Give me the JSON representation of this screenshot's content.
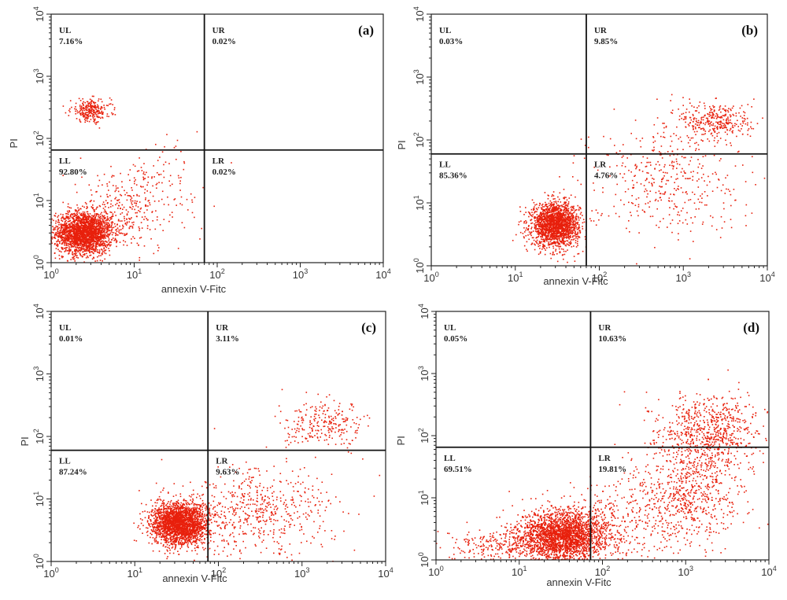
{
  "figure": {
    "point_color": "#e8200c",
    "axis_color": "#222222"
  },
  "chart_data": [
    {
      "type": "scatter",
      "panel": "(a)",
      "xlabel": "annexin V-Fitc",
      "ylabel": "PI",
      "xscale": "log",
      "yscale": "log",
      "xlim": [
        1,
        10000
      ],
      "ylim": [
        1,
        10000
      ],
      "x_ticks": [
        "10^0",
        "10^1",
        "10^2",
        "10^3",
        "10^4"
      ],
      "y_ticks": [
        "10^0",
        "10^1",
        "10^2",
        "10^3",
        "10^4"
      ],
      "gate": {
        "x": 70,
        "y": 65
      },
      "quadrants": [
        {
          "id": "UL",
          "value": "7.16%"
        },
        {
          "id": "UR",
          "value": "0.02%"
        },
        {
          "id": "LL",
          "value": "92.80%"
        },
        {
          "id": "LR",
          "value": "0.02%"
        }
      ],
      "populations": [
        {
          "cx": 2.5,
          "cy": 3.0,
          "sx": 0.17,
          "sy": 0.17,
          "n": 2200
        },
        {
          "cx": 8,
          "cy": 7,
          "sx": 0.35,
          "sy": 0.35,
          "n": 350
        },
        {
          "cx": 3.0,
          "cy": 280,
          "sx": 0.12,
          "sy": 0.09,
          "n": 260
        },
        {
          "cx": 20,
          "cy": 25,
          "sx": 0.25,
          "sy": 0.25,
          "n": 50
        }
      ]
    },
    {
      "type": "scatter",
      "panel": "(b)",
      "xlabel": "annexin V-Fitc",
      "ylabel": "PI",
      "xscale": "log",
      "yscale": "log",
      "xlim": [
        1,
        10000
      ],
      "ylim": [
        1,
        10000
      ],
      "x_ticks": [
        "10^0",
        "10^1",
        "10^2",
        "10^3",
        "10^4"
      ],
      "y_ticks": [
        "10^0",
        "10^1",
        "10^2",
        "10^3",
        "10^4"
      ],
      "gate": {
        "x": 70,
        "y": 60
      },
      "quadrants": [
        {
          "id": "UL",
          "value": "0.03%"
        },
        {
          "id": "UR",
          "value": "9.85%"
        },
        {
          "id": "LL",
          "value": "85.36%"
        },
        {
          "id": "LR",
          "value": "4.76%"
        }
      ],
      "populations": [
        {
          "cx": 30,
          "cy": 4.5,
          "sx": 0.14,
          "sy": 0.17,
          "n": 1900
        },
        {
          "cx": 2500,
          "cy": 200,
          "sx": 0.22,
          "sy": 0.16,
          "n": 330
        },
        {
          "cx": 600,
          "cy": 25,
          "sx": 0.45,
          "sy": 0.45,
          "n": 420
        }
      ]
    },
    {
      "type": "scatter",
      "panel": "(c)",
      "xlabel": "annexin V-Fitc",
      "ylabel": "PI",
      "xscale": "log",
      "yscale": "log",
      "xlim": [
        1,
        10000
      ],
      "ylim": [
        1,
        10000
      ],
      "x_ticks": [
        "10^0",
        "10^1",
        "10^2",
        "10^3",
        "10^4"
      ],
      "y_ticks": [
        "10^0",
        "10^1",
        "10^2",
        "10^3",
        "10^4"
      ],
      "gate": {
        "x": 75,
        "y": 60
      },
      "quadrants": [
        {
          "id": "UL",
          "value": "0.01%"
        },
        {
          "id": "UR",
          "value": "3.11%"
        },
        {
          "id": "LL",
          "value": "87.24%"
        },
        {
          "id": "LR",
          "value": "9.63%"
        }
      ],
      "populations": [
        {
          "cx": 35,
          "cy": 4.0,
          "sx": 0.17,
          "sy": 0.17,
          "n": 2300
        },
        {
          "cx": 300,
          "cy": 6,
          "sx": 0.45,
          "sy": 0.35,
          "n": 550
        },
        {
          "cx": 2000,
          "cy": 150,
          "sx": 0.25,
          "sy": 0.18,
          "n": 250
        }
      ]
    },
    {
      "type": "scatter",
      "panel": "(d)",
      "xlabel": "annexin V-Fitc",
      "ylabel": "PI",
      "xscale": "log",
      "yscale": "log",
      "xlim": [
        1,
        10000
      ],
      "ylim": [
        1,
        10000
      ],
      "x_ticks": [
        "10^0",
        "10^1",
        "10^2",
        "10^3",
        "10^4"
      ],
      "y_ticks": [
        "10^0",
        "10^1",
        "10^2",
        "10^3",
        "10^4"
      ],
      "gate": {
        "x": 72,
        "y": 65
      },
      "quadrants": [
        {
          "id": "UL",
          "value": "0.05%"
        },
        {
          "id": "UR",
          "value": "10.63%"
        },
        {
          "id": "LL",
          "value": "69.51%"
        },
        {
          "id": "LR",
          "value": "19.81%"
        }
      ],
      "populations": [
        {
          "cx": 35,
          "cy": 2.5,
          "sx": 0.26,
          "sy": 0.2,
          "n": 2300
        },
        {
          "cx": 10,
          "cy": 1.6,
          "sx": 0.5,
          "sy": 0.15,
          "n": 450
        },
        {
          "cx": 2000,
          "cy": 120,
          "sx": 0.3,
          "sy": 0.3,
          "n": 700
        },
        {
          "cx": 1200,
          "cy": 12,
          "sx": 0.3,
          "sy": 0.45,
          "n": 550
        },
        {
          "cx": 300,
          "cy": 5,
          "sx": 0.45,
          "sy": 0.4,
          "n": 400
        }
      ]
    }
  ]
}
